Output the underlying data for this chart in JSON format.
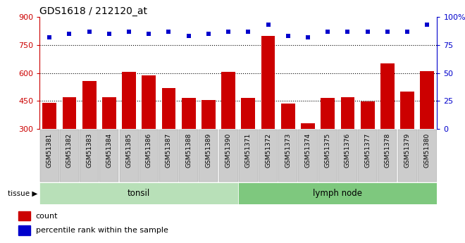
{
  "title": "GDS1618 / 212120_at",
  "samples": [
    "GSM51381",
    "GSM51382",
    "GSM51383",
    "GSM51384",
    "GSM51385",
    "GSM51386",
    "GSM51387",
    "GSM51388",
    "GSM51389",
    "GSM51390",
    "GSM51371",
    "GSM51372",
    "GSM51373",
    "GSM51374",
    "GSM51375",
    "GSM51376",
    "GSM51377",
    "GSM51378",
    "GSM51379",
    "GSM51380"
  ],
  "counts": [
    440,
    470,
    555,
    470,
    605,
    585,
    520,
    465,
    455,
    605,
    465,
    800,
    435,
    330,
    465,
    468,
    445,
    650,
    500,
    610
  ],
  "percentile": [
    82,
    85,
    87,
    85,
    87,
    85,
    87,
    83,
    85,
    87,
    87,
    93,
    83,
    82,
    87,
    87,
    87,
    87,
    87,
    93
  ],
  "n_tonsil": 10,
  "n_lymph": 10,
  "ymin": 300,
  "ymax": 900,
  "yticks": [
    300,
    450,
    600,
    750,
    900
  ],
  "y2ticks": [
    0,
    25,
    50,
    75,
    100
  ],
  "bar_color": "#cc0000",
  "dot_color": "#0000cc",
  "tonsil_bg": "#b8e0b8",
  "lymph_bg": "#7ec87e",
  "xticklabel_bg": "#cccccc",
  "grid_color": "#000000",
  "plot_bg": "#ffffff"
}
